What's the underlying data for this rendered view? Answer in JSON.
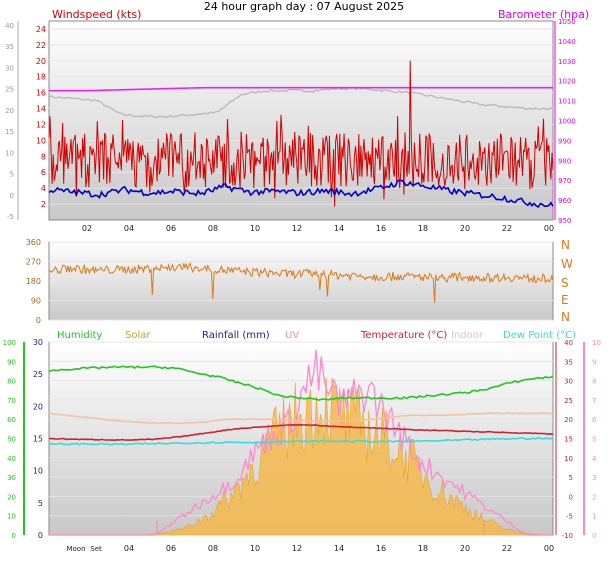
{
  "title": "24 hour graph day : 07 August 2025",
  "colors": {
    "wind": "#d40000",
    "gust_axis": "#d40000",
    "avg_wind": "#0000c8",
    "baro": "#e000e0",
    "baro_line": "#ee22ee",
    "grey_line": "#b8b8b8",
    "dir": "#d97a17",
    "humidity": "#22c522",
    "solar": "#f5b84c",
    "rain": "#22228a",
    "uv": "#ff88cc",
    "temp": "#cc2233",
    "indoor": "#f6c0a0",
    "dew": "#33dddd"
  },
  "chart_data": [
    {
      "type": "line",
      "legend_left": "Windspeed (kts)",
      "legend_right": "Barometer (hpa)",
      "x_ticks": [
        "02",
        "04",
        "06",
        "08",
        "10",
        "12",
        "14",
        "16",
        "18",
        "20",
        "22",
        "00"
      ],
      "y_left_ticks": [
        "2",
        "4",
        "6",
        "8",
        "10",
        "12",
        "14",
        "16",
        "18",
        "20",
        "22",
        "24"
      ],
      "y_outer_left_ticks": [
        "-5",
        "0",
        "5",
        "10",
        "15",
        "20",
        "25",
        "30",
        "35",
        "40"
      ],
      "y_right_ticks": [
        "950",
        "960",
        "970",
        "980",
        "990",
        "1000",
        "1010",
        "1020",
        "1030",
        "1040",
        "1050"
      ],
      "ylim_left": [
        0,
        25
      ],
      "ylim_right": [
        950,
        1050
      ],
      "series": [
        {
          "name": "Windspeed (kts)",
          "values_low": 4,
          "values_high": 11,
          "peak_hour": 17.2,
          "peak_value": 20
        },
        {
          "name": "Average",
          "values": [
            3.8,
            3.5,
            3.2,
            3.8,
            3.4,
            3.6,
            3.3,
            4.2,
            3.5,
            3.6,
            3.4,
            3.7,
            3.3,
            3.9,
            4.8,
            4.2,
            3.6,
            3.2,
            2.8,
            2.2,
            1.8
          ]
        },
        {
          "name": "Barometer (hpa)",
          "values": [
            1015,
            1015,
            1015.5,
            1016,
            1016.5,
            1016.5,
            1016.5,
            1016.5,
            1016.5,
            1016.5,
            1016.5,
            1016.5,
            1016.5,
            1016.5
          ]
        },
        {
          "name": "grey",
          "values": [
            1012,
            1011,
            1010,
            1003,
            1002,
            1002,
            1003,
            1004,
            1013,
            1015,
            1015,
            1015,
            1016,
            1016,
            1015,
            1014,
            1012,
            1010,
            1008,
            1007,
            1006,
            1006
          ]
        }
      ]
    },
    {
      "type": "line",
      "right_labels": [
        "N",
        "W",
        "S",
        "E",
        "N"
      ],
      "y_left_ticks": [
        "0",
        "90",
        "180",
        "270",
        "360"
      ],
      "ylim": [
        0,
        360
      ],
      "series": [
        {
          "name": "Direction",
          "values": [
            225,
            240,
            228,
            232,
            235,
            240,
            245,
            238,
            230,
            222,
            218,
            212,
            215,
            208,
            205,
            200,
            202,
            198,
            195,
            200,
            195,
            198,
            190,
            195
          ]
        }
      ]
    },
    {
      "type": "line",
      "legends": [
        "Humidity",
        "Solar",
        "Rainfall (mm)",
        "UV",
        "Temperature (°C)",
        "Indoor",
        "Dew Point (°C)"
      ],
      "x_ticks": [
        "Moon",
        "Set",
        "04",
        "06",
        "08",
        "10",
        "12",
        "14",
        "16",
        "18",
        "20",
        "22",
        "00"
      ],
      "humidity_ticks": [
        "0",
        "10",
        "20",
        "30",
        "40",
        "50",
        "60",
        "70",
        "80",
        "90",
        "100"
      ],
      "rain_ticks": [
        "0",
        "5",
        "10",
        "15",
        "20",
        "25",
        "30"
      ],
      "temp_ticks": [
        "-10",
        "-5",
        "0",
        "5",
        "10",
        "15",
        "20",
        "25",
        "30",
        "35",
        "40"
      ],
      "uv_ticks": [
        "0",
        "1",
        "2",
        "3",
        "4",
        "5",
        "6",
        "7",
        "8",
        "9",
        "10"
      ],
      "ylim_temp": [
        -10,
        40
      ],
      "series": [
        {
          "name": "Humidity",
          "values": [
            85,
            86,
            86.5,
            87,
            87,
            87,
            86.5,
            84,
            82,
            79,
            76,
            72,
            71,
            70,
            71,
            71,
            71,
            71,
            72,
            73,
            74,
            76,
            79,
            81,
            82
          ]
        },
        {
          "name": "Temperature (°C)",
          "values": [
            15,
            14.8,
            14.7,
            14.6,
            14.8,
            15.5,
            16.5,
            17.5,
            18,
            18.5,
            18.5,
            18,
            17.8,
            17.5,
            17.2,
            17,
            16.8,
            16.6,
            16.4,
            16.2
          ]
        },
        {
          "name": "Indoor",
          "values": [
            21.5,
            20.5,
            19.5,
            19,
            19,
            20,
            20,
            19.5,
            19.5,
            20,
            21,
            21,
            21.5,
            21.5,
            21.5
          ]
        },
        {
          "name": "Dew Point (°C)",
          "values": [
            13.5,
            13.6,
            13.5,
            13.6,
            13.8,
            14,
            14,
            14.2,
            14.3,
            14.3,
            14.2,
            14.3,
            14.5,
            14.8,
            15,
            15
          ]
        },
        {
          "name": "Solar",
          "values": [
            0,
            0,
            0,
            0,
            0,
            3,
            15,
            40,
            80,
            140,
            200,
            240,
            260,
            230,
            210,
            180,
            140,
            90,
            60,
            30,
            10,
            2,
            0
          ]
        },
        {
          "name": "UV",
          "values": [
            0,
            0,
            0,
            0,
            0,
            1,
            2,
            3,
            5,
            6,
            9,
            7,
            8,
            6,
            4,
            3,
            2,
            1,
            0,
            0
          ]
        }
      ]
    }
  ]
}
